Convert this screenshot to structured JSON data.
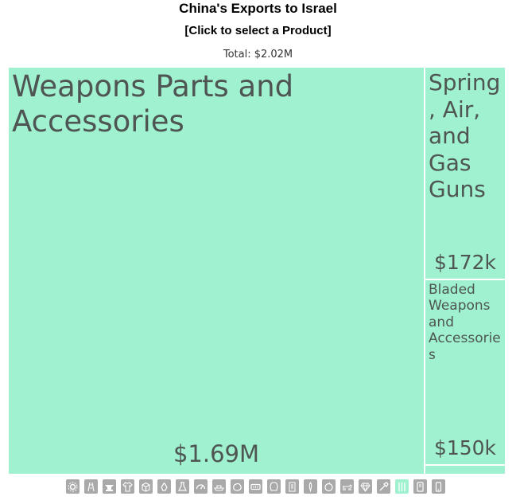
{
  "header": {
    "title": "China's Exports to Israel",
    "subtitle": "[Click to select a Product]",
    "total": "Total: $2.02M"
  },
  "chart_data": {
    "type": "treemap",
    "title": "China's Exports to Israel",
    "total": "$2.02M",
    "unit": "USD",
    "items": [
      {
        "name": "Weapons Parts and Accessories",
        "value": 1690000,
        "value_label": "$1.69M"
      },
      {
        "name": "Spring, Air, and Gas Guns",
        "value": 172000,
        "value_label": "$172k"
      },
      {
        "name": "Bladed Weapons and Accessories",
        "value": 150000,
        "value_label": "$150k"
      },
      {
        "name": "",
        "value": 8000,
        "value_label": ""
      }
    ]
  },
  "colors": {
    "tile": "#9ff1d0",
    "icon": "#a9a9a9",
    "icon_active": "#9ff1d0",
    "text": "#4f5552"
  },
  "category_icons": [
    "gear-icon",
    "road-icon",
    "anvil-icon",
    "shirt-icon",
    "box-icon",
    "recycle-icon",
    "flask-icon",
    "gauge-icon",
    "ship-icon",
    "stone-icon",
    "ticket-icon",
    "leather-icon",
    "scroll-icon",
    "corn-icon",
    "fruit-icon",
    "animal-icon",
    "gem-icon",
    "tools-icon",
    "weapons-icon",
    "phone-icon",
    "mobile-icon"
  ],
  "active_category": "weapons-icon"
}
